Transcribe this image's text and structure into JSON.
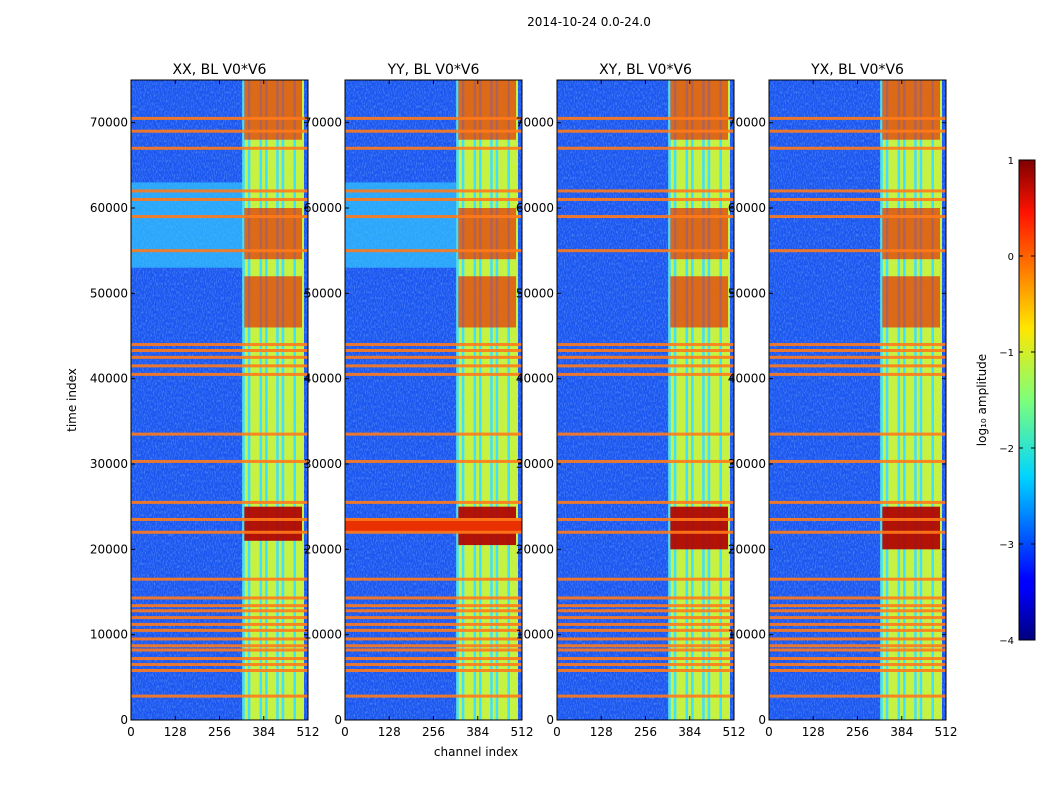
{
  "chart_data": {
    "type": "heatmap",
    "suptitle": "2014-10-24 0.0-24.0",
    "xlabel": "channel index",
    "ylabel": "time index",
    "xlim": [
      0,
      512
    ],
    "ylim": [
      0,
      75000
    ],
    "xticks": [
      0,
      128,
      256,
      384,
      512
    ],
    "xtick_labels": [
      "0",
      "128",
      "256",
      "384",
      "512"
    ],
    "yticks": [
      0,
      10000,
      20000,
      30000,
      40000,
      50000,
      60000,
      70000
    ],
    "ytick_labels": [
      "0",
      "10000",
      "20000",
      "30000",
      "40000",
      "50000",
      "60000",
      "70000"
    ],
    "panels": [
      {
        "title": "XX, BL V0*V6",
        "band_start": 322,
        "hot_block": [
          21000,
          25000
        ],
        "soft_region": [
          53000,
          63000
        ]
      },
      {
        "title": "YY, BL V0*V6",
        "band_start": 322,
        "hot_block": [
          20500,
          25000
        ],
        "soft_region": [
          53000,
          63000
        ]
      },
      {
        "title": "XY, BL V0*V6",
        "band_start": 322,
        "hot_block": [
          20000,
          25000
        ],
        "soft_region": null
      },
      {
        "title": "YX, BL V0*V6",
        "band_start": 322,
        "hot_block": [
          20000,
          25000
        ],
        "soft_region": null
      }
    ],
    "flag_rows": [
      2800,
      5800,
      6500,
      7200,
      8200,
      8700,
      9500,
      10500,
      11200,
      12000,
      12800,
      13400,
      14300,
      16500,
      22000,
      23500,
      25500,
      30300,
      33500,
      40500,
      41500,
      42500,
      43300,
      44000,
      55000,
      59000,
      61000,
      62000,
      67000,
      69000,
      70500
    ],
    "stripe_channels": [
      322,
      338,
      372,
      388,
      420,
      436,
      470
    ],
    "colorbar": {
      "label": "log₁₀ amplitude",
      "min": -4,
      "max": 1,
      "ticks": [
        1,
        0,
        -1,
        -2,
        -3,
        -4
      ],
      "tick_labels": [
        "1",
        "0",
        "−1",
        "−2",
        "−3",
        "−4"
      ],
      "colormap": "jet"
    }
  }
}
